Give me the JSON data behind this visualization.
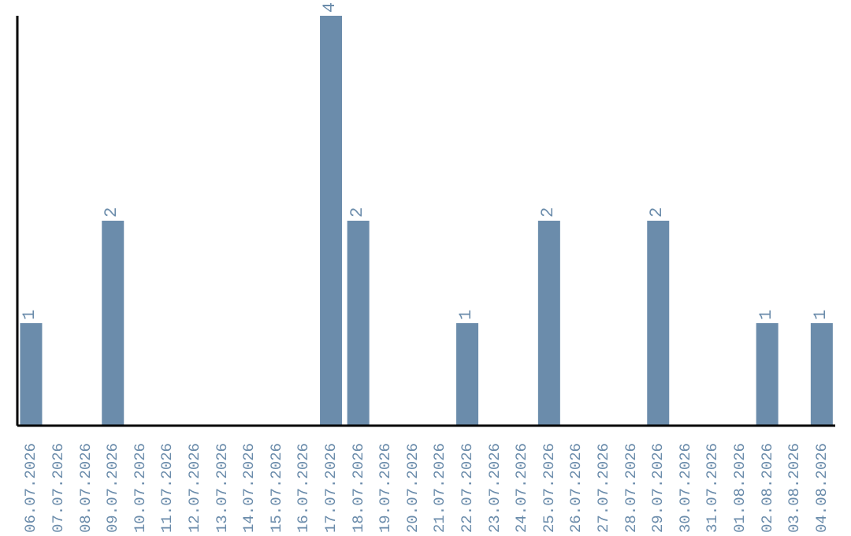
{
  "chart_data": {
    "type": "bar",
    "categories": [
      "06.07.2026",
      "07.07.2026",
      "08.07.2026",
      "09.07.2026",
      "10.07.2026",
      "11.07.2026",
      "12.07.2026",
      "13.07.2026",
      "14.07.2026",
      "15.07.2026",
      "16.07.2026",
      "17.07.2026",
      "18.07.2026",
      "19.07.2026",
      "20.07.2026",
      "21.07.2026",
      "22.07.2026",
      "23.07.2026",
      "24.07.2026",
      "25.07.2026",
      "26.07.2026",
      "27.07.2026",
      "28.07.2026",
      "29.07.2026",
      "30.07.2026",
      "31.07.2026",
      "01.08.2026",
      "02.08.2026",
      "03.08.2026",
      "04.08.2026"
    ],
    "values": [
      1,
      0,
      0,
      2,
      0,
      0,
      0,
      0,
      0,
      0,
      0,
      4,
      2,
      0,
      0,
      0,
      1,
      0,
      0,
      2,
      0,
      0,
      0,
      2,
      0,
      0,
      0,
      1,
      0,
      1
    ],
    "value_labels": [
      "1",
      null,
      null,
      "2",
      null,
      null,
      null,
      null,
      null,
      null,
      null,
      "4",
      "2",
      null,
      null,
      null,
      "1",
      null,
      null,
      "2",
      null,
      null,
      null,
      "2",
      null,
      null,
      null,
      "1",
      null,
      "1"
    ],
    "color": "#6b8cab",
    "grid": false,
    "legend": false
  }
}
